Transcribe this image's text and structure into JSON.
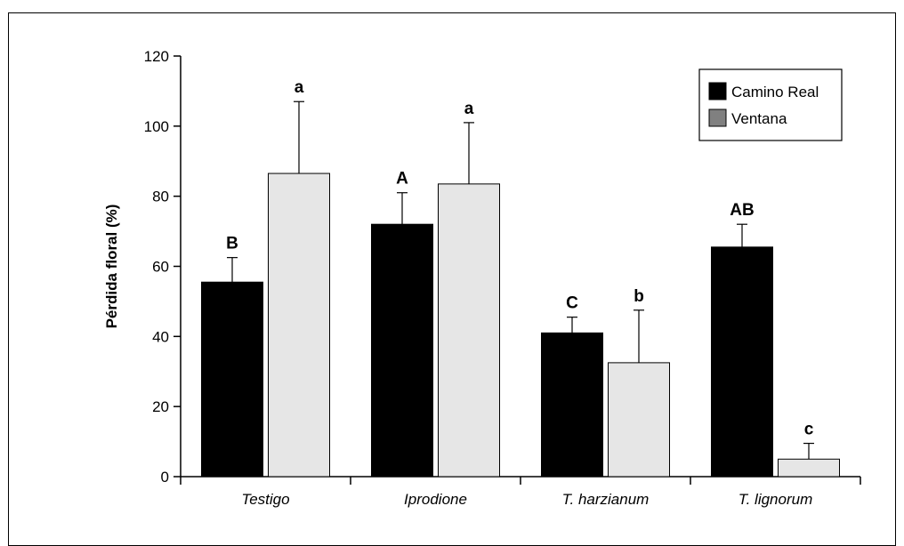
{
  "chart_data": {
    "type": "bar",
    "ylabel": "Pérdida floral (%)",
    "ylim": [
      0,
      120
    ],
    "yticks": [
      0,
      20,
      40,
      60,
      80,
      100,
      120
    ],
    "categories": [
      "Testigo",
      "Iprodione",
      "T. harzianum",
      "T. lignorum"
    ],
    "series": [
      {
        "name": "Camino Real",
        "color": "#000000",
        "values": [
          55.5,
          72,
          41,
          65.5
        ],
        "errors": [
          7,
          9,
          4.5,
          6.5
        ],
        "letters": [
          "B",
          "A",
          "C",
          "AB"
        ]
      },
      {
        "name": "Ventana",
        "color": "#e6e6e6",
        "values": [
          86.5,
          83.5,
          32.5,
          5
        ],
        "errors": [
          20.5,
          17.5,
          15,
          4.5
        ],
        "letters": [
          "a",
          "a",
          "b",
          "c"
        ]
      }
    ],
    "legend": {
      "position": "top-right",
      "items": [
        {
          "label": "Camino Real",
          "color": "#000000"
        },
        {
          "label": "Ventana",
          "color": "#808080"
        }
      ]
    },
    "grid": false
  }
}
